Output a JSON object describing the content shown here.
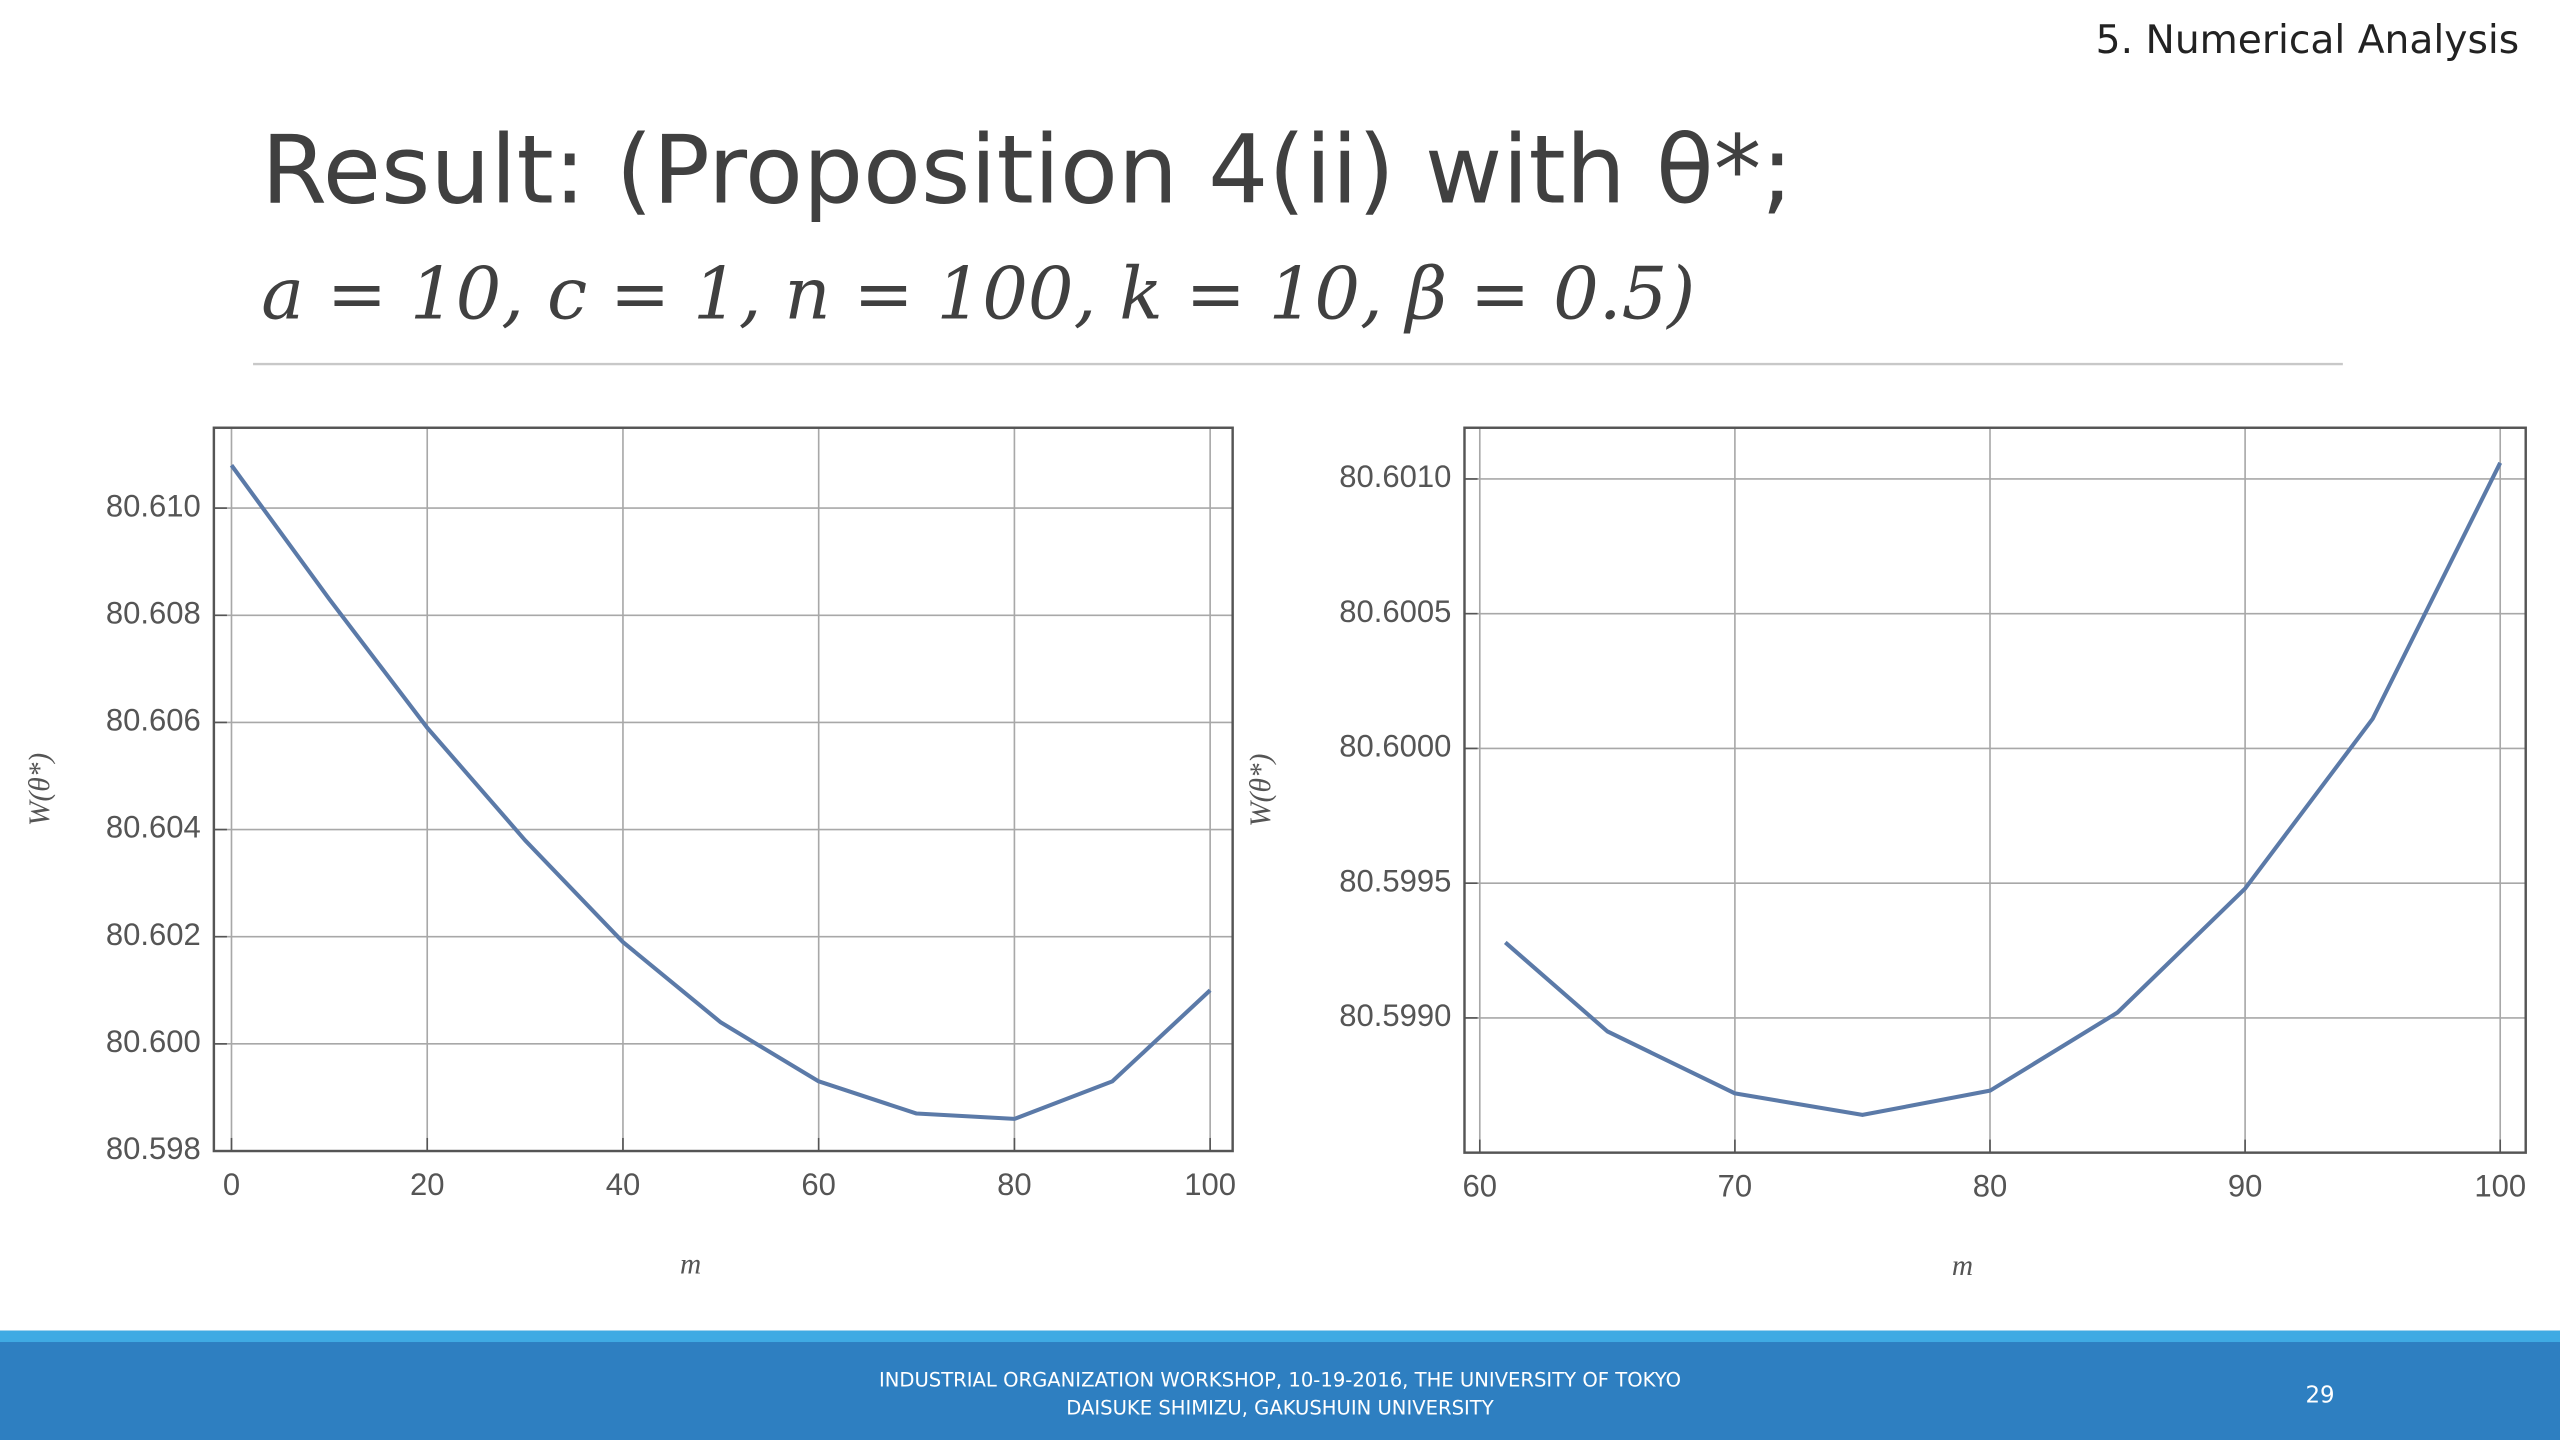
{
  "header": "5. Numerical Analysis",
  "title": "Result: (Proposition 4(ii) with θ*;",
  "subtitle": "a = 10, c = 1, n = 100, k = 10, β = 0.5)",
  "footer": {
    "line1": "INDUSTRIAL ORGANIZATION WORKSHOP, 10-19-2016, THE UNIVERSITY OF TOKYO",
    "line2": "DAISUKE SHIMIZU, GAKUSHUIN UNIVERSITY",
    "page": "29"
  },
  "chart_data": [
    {
      "type": "line",
      "x_label": "m",
      "y_label": "W(θ*)",
      "x": [
        0,
        10,
        20,
        30,
        40,
        50,
        60,
        70,
        80,
        90,
        100
      ],
      "series": [
        {
          "color": "#5b7aa8",
          "values": [
            80.6108,
            80.6083,
            80.6059,
            80.6038,
            80.6019,
            80.6004,
            80.5993,
            80.5987,
            80.5986,
            80.5993,
            80.601
          ]
        }
      ],
      "xlim": [
        -1.8,
        102.3
      ],
      "ylim": [
        80.598,
        80.6115
      ],
      "xticks": [
        0,
        20,
        40,
        60,
        80,
        100
      ],
      "yticks": [
        80.598,
        {
          "value": 80.6,
          "label": "80.600"
        },
        80.602,
        80.604,
        80.606,
        80.608,
        {
          "value": 80.61,
          "label": "80.610"
        }
      ],
      "grid": true
    },
    {
      "type": "line",
      "x_label": "m",
      "y_label": "W(θ*)",
      "x": [
        61,
        65,
        70,
        75,
        80,
        85,
        90,
        95,
        100
      ],
      "series": [
        {
          "color": "#5b7aa8",
          "values": [
            80.59928,
            80.59895,
            80.59872,
            80.59864,
            80.59873,
            80.59902,
            80.59948,
            80.60011,
            80.60106
          ]
        }
      ],
      "xlim": [
        59.4,
        101.0
      ],
      "ylim": [
        80.5985,
        80.60119
      ],
      "xticks": [
        60,
        70,
        80,
        90,
        100
      ],
      "yticks": [
        {
          "value": 80.599,
          "label": "80.5990"
        },
        80.5995,
        {
          "value": 80.6,
          "label": "80.6000"
        },
        80.6005,
        {
          "value": 80.601,
          "label": "80.6010"
        }
      ],
      "grid": true
    }
  ]
}
